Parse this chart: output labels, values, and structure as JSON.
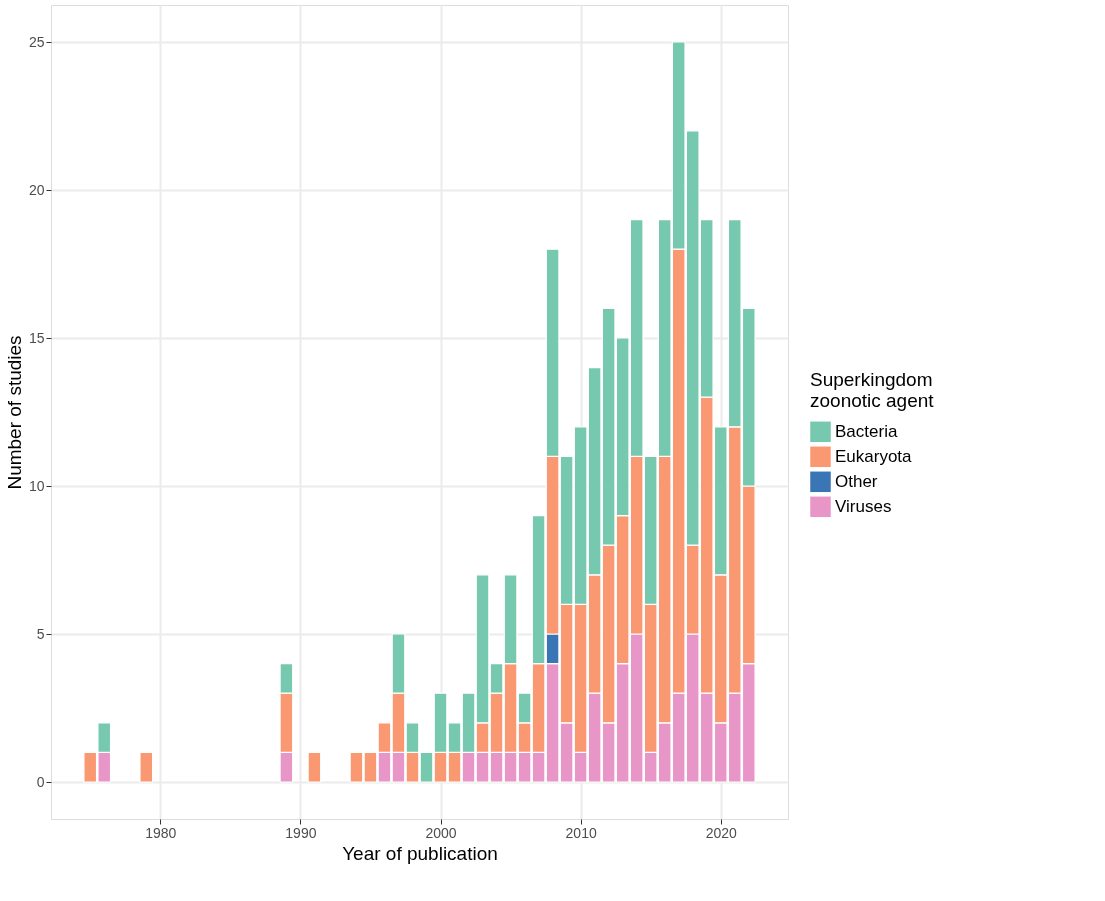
{
  "chart_data": {
    "type": "bar",
    "stacked": true,
    "xlabel": "Year of publication",
    "ylabel": "Number of studies",
    "legend_title": "Superkingdom\nzoonotic agent",
    "x": [
      1975,
      1976,
      1979,
      1989,
      1991,
      1994,
      1995,
      1996,
      1997,
      1998,
      1999,
      2000,
      2001,
      2002,
      2003,
      2004,
      2005,
      2006,
      2007,
      2008,
      2009,
      2010,
      2011,
      2012,
      2013,
      2014,
      2015,
      2016,
      2017,
      2018,
      2019,
      2020,
      2021,
      2022
    ],
    "series": [
      {
        "name": "Viruses",
        "color": "#e895c8",
        "values": [
          0,
          1,
          0,
          1,
          0,
          0,
          0,
          1,
          1,
          0,
          0,
          0,
          0,
          1,
          1,
          1,
          1,
          1,
          1,
          4,
          2,
          1,
          3,
          2,
          4,
          5,
          1,
          2,
          3,
          5,
          3,
          2,
          3,
          4
        ]
      },
      {
        "name": "Other",
        "color": "#3a75b5",
        "values": [
          0,
          0,
          0,
          0,
          0,
          0,
          0,
          0,
          0,
          0,
          0,
          0,
          0,
          0,
          0,
          0,
          0,
          0,
          0,
          1,
          0,
          0,
          0,
          0,
          0,
          0,
          0,
          0,
          0,
          0,
          0,
          0,
          0,
          0
        ]
      },
      {
        "name": "Eukaryota",
        "color": "#fa9872",
        "values": [
          1,
          0,
          1,
          2,
          1,
          1,
          1,
          1,
          2,
          1,
          0,
          1,
          1,
          0,
          1,
          2,
          3,
          1,
          3,
          6,
          4,
          5,
          4,
          6,
          5,
          6,
          5,
          9,
          15,
          3,
          10,
          5,
          9,
          6
        ]
      },
      {
        "name": "Bacteria",
        "color": "#76c8ae",
        "values": [
          0,
          1,
          0,
          1,
          0,
          0,
          0,
          0,
          2,
          1,
          1,
          2,
          1,
          2,
          5,
          1,
          3,
          1,
          5,
          7,
          5,
          6,
          7,
          8,
          6,
          8,
          5,
          8,
          7,
          14,
          6,
          5,
          7,
          6
        ]
      }
    ],
    "xlim": [
      1972.2,
      2024.8
    ],
    "xticks": [
      1980,
      1990,
      2000,
      2010,
      2020
    ],
    "ylim": [
      -1.25,
      26.25
    ],
    "yticks": [
      0,
      5,
      10,
      15,
      20,
      25
    ],
    "grid": true,
    "legend": "right"
  }
}
